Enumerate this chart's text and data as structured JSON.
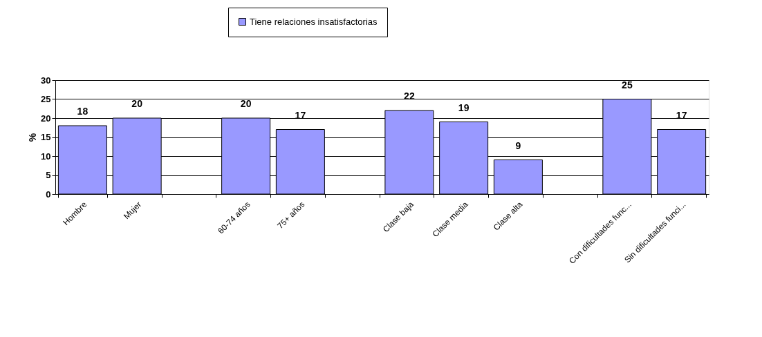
{
  "chart_data": {
    "type": "bar",
    "ylabel": "%",
    "categories": [
      "Hombre",
      "Mujer",
      null,
      "60-74 años",
      "75+ años",
      null,
      "Clase baja",
      "Clase media",
      "Clase alta",
      null,
      "Con dificultades func...",
      "Sin dificultades funci..."
    ],
    "series": [
      {
        "name": "Tiene relaciones insatisfactorias",
        "color": "#9999ff",
        "values": [
          18,
          20,
          null,
          20,
          17,
          null,
          22,
          19,
          9,
          null,
          25,
          17
        ]
      }
    ],
    "ylim": [
      0,
      30
    ],
    "yticks": [
      0,
      5,
      10,
      15,
      20,
      25,
      30
    ],
    "grid": "y",
    "data_labels": true,
    "legend": "top"
  }
}
